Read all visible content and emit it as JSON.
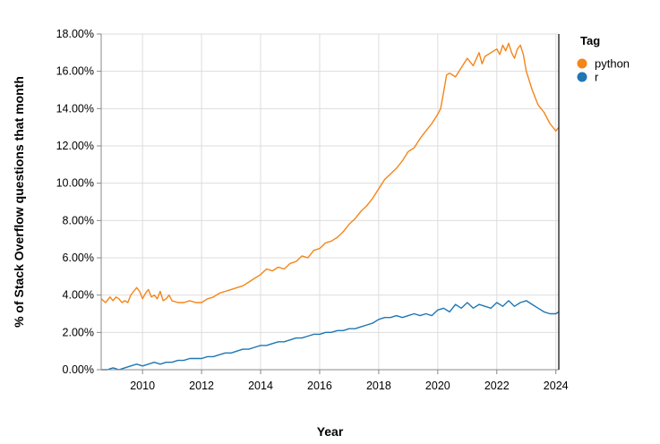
{
  "chart_data": {
    "type": "line",
    "title": "",
    "xlabel": "Year",
    "ylabel": "% of Stack Overflow questions that month",
    "xlim": [
      2008.6,
      2024.1
    ],
    "ylim": [
      0,
      0.18
    ],
    "x_ticks": [
      "2010",
      "2012",
      "2014",
      "2016",
      "2018",
      "2020",
      "2022",
      "2024"
    ],
    "y_ticks": [
      "0.00%",
      "2.00%",
      "4.00%",
      "6.00%",
      "8.00%",
      "10.00%",
      "12.00%",
      "14.00%",
      "16.00%",
      "18.00%"
    ],
    "grid": true,
    "legend": {
      "title": "Tag",
      "placement": "right"
    },
    "series": [
      {
        "name": "python",
        "color": "#f58518",
        "x": [
          2008.6,
          2008.75,
          2008.9,
          2009.0,
          2009.1,
          2009.2,
          2009.3,
          2009.4,
          2009.5,
          2009.6,
          2009.7,
          2009.8,
          2009.9,
          2010.0,
          2010.1,
          2010.2,
          2010.3,
          2010.4,
          2010.5,
          2010.6,
          2010.7,
          2010.8,
          2010.9,
          2011.0,
          2011.2,
          2011.4,
          2011.6,
          2011.8,
          2012.0,
          2012.2,
          2012.4,
          2012.6,
          2012.8,
          2013.0,
          2013.2,
          2013.4,
          2013.6,
          2013.8,
          2014.0,
          2014.2,
          2014.4,
          2014.6,
          2014.8,
          2015.0,
          2015.2,
          2015.4,
          2015.6,
          2015.8,
          2016.0,
          2016.2,
          2016.4,
          2016.6,
          2016.8,
          2017.0,
          2017.2,
          2017.4,
          2017.6,
          2017.8,
          2018.0,
          2018.2,
          2018.4,
          2018.6,
          2018.8,
          2019.0,
          2019.2,
          2019.4,
          2019.6,
          2019.8,
          2020.0,
          2020.1,
          2020.2,
          2020.3,
          2020.4,
          2020.6,
          2020.8,
          2021.0,
          2021.2,
          2021.4,
          2021.5,
          2021.6,
          2021.8,
          2022.0,
          2022.1,
          2022.2,
          2022.3,
          2022.4,
          2022.5,
          2022.6,
          2022.7,
          2022.8,
          2022.9,
          2023.0,
          2023.2,
          2023.4,
          2023.6,
          2023.8,
          2024.0,
          2024.1
        ],
        "values": [
          0.038,
          0.036,
          0.039,
          0.037,
          0.039,
          0.038,
          0.036,
          0.037,
          0.036,
          0.04,
          0.042,
          0.044,
          0.042,
          0.038,
          0.041,
          0.043,
          0.039,
          0.04,
          0.038,
          0.042,
          0.037,
          0.038,
          0.04,
          0.037,
          0.036,
          0.036,
          0.037,
          0.036,
          0.036,
          0.038,
          0.039,
          0.041,
          0.042,
          0.043,
          0.044,
          0.045,
          0.047,
          0.049,
          0.051,
          0.054,
          0.053,
          0.055,
          0.054,
          0.057,
          0.058,
          0.061,
          0.06,
          0.064,
          0.065,
          0.068,
          0.069,
          0.071,
          0.074,
          0.078,
          0.081,
          0.085,
          0.088,
          0.092,
          0.097,
          0.102,
          0.105,
          0.108,
          0.112,
          0.117,
          0.119,
          0.124,
          0.128,
          0.132,
          0.137,
          0.14,
          0.149,
          0.158,
          0.159,
          0.157,
          0.162,
          0.167,
          0.163,
          0.17,
          0.164,
          0.168,
          0.17,
          0.172,
          0.169,
          0.174,
          0.171,
          0.175,
          0.17,
          0.167,
          0.172,
          0.174,
          0.169,
          0.16,
          0.15,
          0.142,
          0.138,
          0.132,
          0.128,
          0.13
        ]
      },
      {
        "name": "r",
        "color": "#1f77b4",
        "x": [
          2008.6,
          2008.8,
          2009.0,
          2009.2,
          2009.4,
          2009.6,
          2009.8,
          2010.0,
          2010.2,
          2010.4,
          2010.6,
          2010.8,
          2011.0,
          2011.2,
          2011.4,
          2011.6,
          2011.8,
          2012.0,
          2012.2,
          2012.4,
          2012.6,
          2012.8,
          2013.0,
          2013.2,
          2013.4,
          2013.6,
          2013.8,
          2014.0,
          2014.2,
          2014.4,
          2014.6,
          2014.8,
          2015.0,
          2015.2,
          2015.4,
          2015.6,
          2015.8,
          2016.0,
          2016.2,
          2016.4,
          2016.6,
          2016.8,
          2017.0,
          2017.2,
          2017.4,
          2017.6,
          2017.8,
          2018.0,
          2018.2,
          2018.4,
          2018.6,
          2018.8,
          2019.0,
          2019.2,
          2019.4,
          2019.6,
          2019.8,
          2020.0,
          2020.2,
          2020.4,
          2020.6,
          2020.8,
          2021.0,
          2021.2,
          2021.4,
          2021.6,
          2021.8,
          2022.0,
          2022.2,
          2022.4,
          2022.6,
          2022.8,
          2023.0,
          2023.2,
          2023.4,
          2023.6,
          2023.8,
          2024.0,
          2024.1
        ],
        "values": [
          0.0,
          0.0,
          0.001,
          0.0,
          0.001,
          0.002,
          0.003,
          0.002,
          0.003,
          0.004,
          0.003,
          0.004,
          0.004,
          0.005,
          0.005,
          0.006,
          0.006,
          0.006,
          0.007,
          0.007,
          0.008,
          0.009,
          0.009,
          0.01,
          0.011,
          0.011,
          0.012,
          0.013,
          0.013,
          0.014,
          0.015,
          0.015,
          0.016,
          0.017,
          0.017,
          0.018,
          0.019,
          0.019,
          0.02,
          0.02,
          0.021,
          0.021,
          0.022,
          0.022,
          0.023,
          0.024,
          0.025,
          0.027,
          0.028,
          0.028,
          0.029,
          0.028,
          0.029,
          0.03,
          0.029,
          0.03,
          0.029,
          0.032,
          0.033,
          0.031,
          0.035,
          0.033,
          0.036,
          0.033,
          0.035,
          0.034,
          0.033,
          0.036,
          0.034,
          0.037,
          0.034,
          0.036,
          0.037,
          0.035,
          0.033,
          0.031,
          0.03,
          0.03,
          0.031
        ]
      }
    ]
  }
}
